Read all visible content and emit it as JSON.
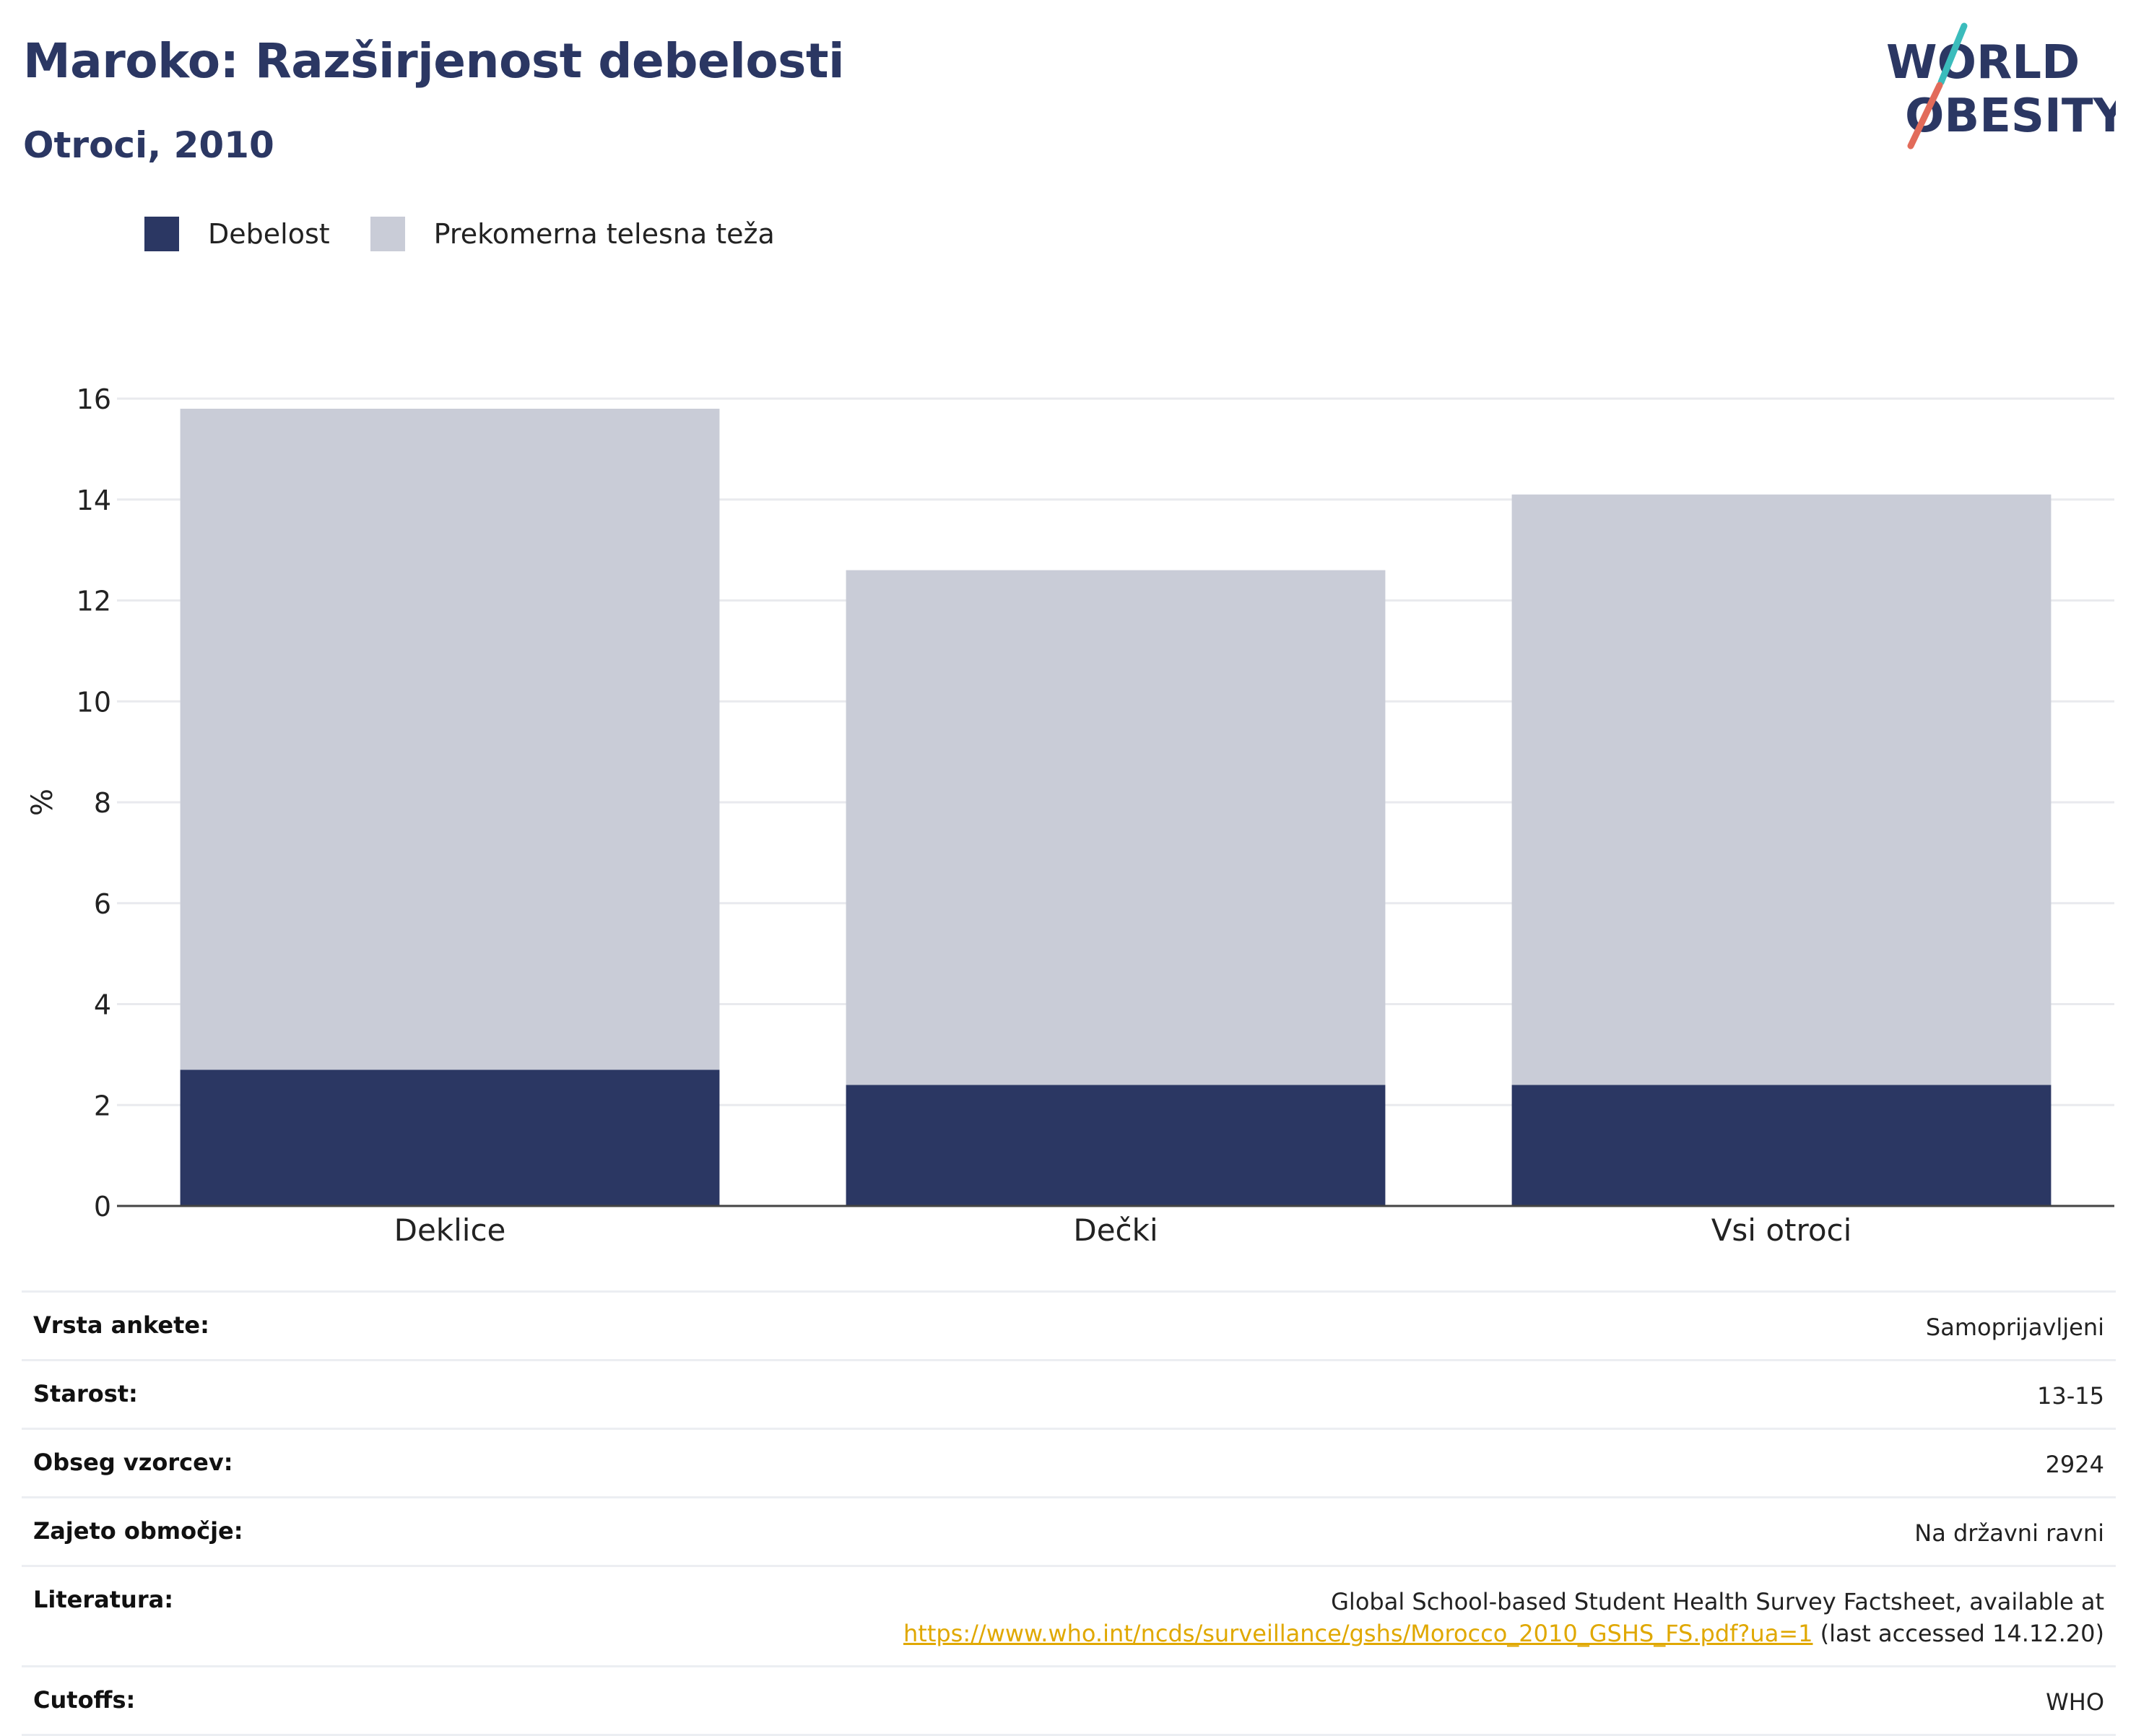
{
  "title": "Maroko: Razširjenost debelosti",
  "subtitle": "Otroci, 2010",
  "logo": {
    "line1": "WORLD",
    "line2": "OBESITY",
    "slash_colors": [
      "#3bbcbc",
      "#e26b5a"
    ]
  },
  "colors": {
    "obesity": "#2b3763",
    "overweight": "#c9ccd7",
    "title": "#2b3763",
    "link": "#e0a800"
  },
  "chart_data": {
    "type": "bar",
    "stacked": true,
    "categories": [
      "Deklice",
      "Dečki",
      "Vsi otroci"
    ],
    "series": [
      {
        "name": "Debelost",
        "values": [
          2.7,
          2.4,
          2.4
        ]
      },
      {
        "name": "Prekomerna telesna teža",
        "values": [
          13.1,
          10.2,
          11.7
        ]
      }
    ],
    "totals": [
      15.8,
      12.6,
      14.1
    ],
    "ylabel": "%",
    "ylim": [
      0,
      16
    ],
    "yticks": [
      0,
      2,
      4,
      6,
      8,
      10,
      12,
      14,
      16
    ],
    "grid": true,
    "legend_position": "top-left"
  },
  "info": [
    {
      "label": "Vrsta ankete:",
      "value": "Samoprijavljeni"
    },
    {
      "label": "Starost:",
      "value": "13-15"
    },
    {
      "label": "Obseg vzorcev:",
      "value": "2924"
    },
    {
      "label": "Zajeto območje:",
      "value": "Na državni ravni"
    },
    {
      "label": "Literatura:",
      "value_line1": "Global School-based Student Health Survey Factsheet, available at",
      "link": "https://www.who.int/ncds/surveillance/gshs/Morocco_2010_GSHS_FS.pdf?ua=1",
      "value_suffix": "(last accessed 14.12.20)"
    },
    {
      "label": "Cutoffs:",
      "value": "WHO"
    }
  ]
}
